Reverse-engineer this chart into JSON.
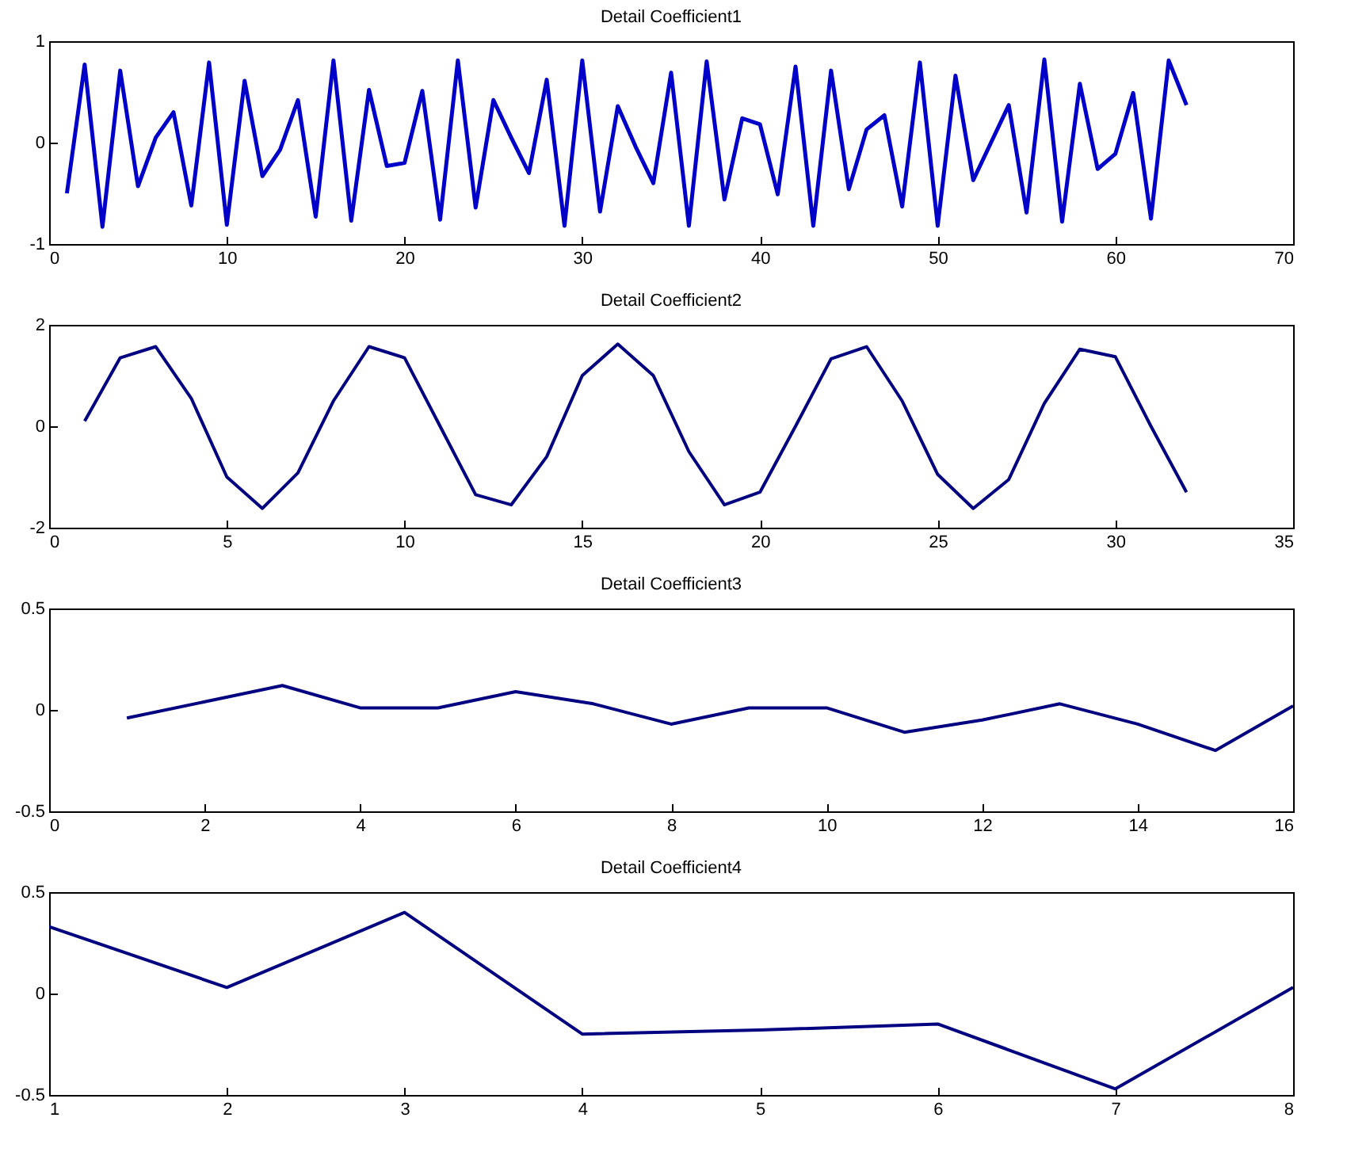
{
  "chart_data": [
    {
      "type": "line",
      "title": "Detail Coefficient1",
      "x": [
        1,
        2,
        3,
        4,
        5,
        6,
        7,
        8,
        9,
        10,
        11,
        12,
        13,
        14,
        15,
        16,
        17,
        18,
        19,
        20,
        21,
        22,
        23,
        24,
        25,
        26,
        27,
        28,
        29,
        30,
        31,
        32,
        33,
        34,
        35,
        36,
        37,
        38,
        39,
        40,
        41,
        42,
        43,
        44,
        45,
        46,
        47,
        48,
        49,
        50,
        51,
        52,
        53,
        54,
        55,
        56,
        57,
        58,
        59,
        60,
        61,
        62,
        63,
        64
      ],
      "series": [
        {
          "color": "#0000c8",
          "values": [
            -0.5,
            0.77,
            -0.83,
            0.71,
            -0.43,
            0.05,
            0.3,
            -0.62,
            0.79,
            -0.81,
            0.61,
            -0.33,
            -0.07,
            0.42,
            -0.73,
            0.81,
            -0.77,
            0.52,
            -0.23,
            -0.2,
            0.51,
            -0.76,
            0.81,
            -0.64,
            0.42,
            0.05,
            -0.3,
            0.62,
            -0.82,
            0.81,
            -0.68,
            0.36,
            -0.04,
            -0.4,
            0.69,
            -0.82,
            0.8,
            -0.56,
            0.24,
            0.18,
            -0.51,
            0.75,
            -0.82,
            0.71,
            -0.46,
            0.13,
            0.27,
            -0.63,
            0.79,
            -0.82,
            0.66,
            -0.37,
            0,
            0.37,
            -0.69,
            0.82,
            -0.78,
            0.58,
            -0.26,
            -0.11,
            0.49,
            -0.75,
            0.81,
            0.37
          ]
        }
      ],
      "xlim": [
        0,
        70
      ],
      "xticks": [
        0,
        10,
        20,
        30,
        40,
        50,
        60,
        70
      ],
      "ylim": [
        -1,
        1
      ],
      "yticks": [
        -1,
        0,
        1
      ]
    },
    {
      "type": "line",
      "title": "Detail Coefficient2",
      "x": [
        1,
        2,
        3,
        4,
        5,
        6,
        7,
        8,
        9,
        10,
        11,
        12,
        13,
        14,
        15,
        16,
        17,
        18,
        19,
        20,
        21,
        22,
        23,
        24,
        25,
        26,
        27,
        28,
        29,
        30,
        31,
        32
      ],
      "series": [
        {
          "color": "#000080",
          "values": [
            0.1,
            1.35,
            1.57,
            0.55,
            -1.0,
            -1.62,
            -0.92,
            0.5,
            1.57,
            1.35,
            0,
            -1.35,
            -1.55,
            -0.6,
            1.0,
            1.62,
            1.0,
            -0.5,
            -1.55,
            -1.3,
            0,
            1.33,
            1.57,
            0.5,
            -0.95,
            -1.62,
            -1.05,
            0.45,
            1.52,
            1.37,
            0,
            -1.3
          ]
        }
      ],
      "xlim": [
        0,
        35
      ],
      "xticks": [
        0,
        5,
        10,
        15,
        20,
        25,
        30,
        35
      ],
      "ylim": [
        -2,
        2
      ],
      "yticks": [
        -2,
        0,
        2
      ]
    },
    {
      "type": "line",
      "title": "Detail Coefficient3",
      "x": [
        1,
        2,
        3,
        4,
        5,
        6,
        7,
        8,
        9,
        10,
        11,
        12,
        13,
        14,
        15,
        16
      ],
      "series": [
        {
          "color": "#000080",
          "values": [
            -0.04,
            0.04,
            0.12,
            0.01,
            0.01,
            0.09,
            0.03,
            -0.07,
            0.01,
            0.01,
            -0.11,
            -0.05,
            0.03,
            -0.07,
            -0.2,
            0.02
          ]
        }
      ],
      "xlim": [
        0,
        16
      ],
      "xticks": [
        0,
        2,
        4,
        6,
        8,
        10,
        12,
        14,
        16
      ],
      "ylim": [
        -0.5,
        0.5
      ],
      "yticks": [
        -0.5,
        0,
        0.5
      ]
    },
    {
      "type": "line",
      "title": "Detail Coefficient4",
      "x": [
        1,
        2,
        3,
        4,
        5,
        6,
        7,
        8
      ],
      "series": [
        {
          "color": "#000080",
          "values": [
            0.33,
            0.03,
            0.4,
            -0.2,
            -0.18,
            -0.15,
            -0.47,
            0.03
          ]
        }
      ],
      "xlim": [
        1,
        8
      ],
      "xticks": [
        1,
        2,
        3,
        4,
        5,
        6,
        7,
        8
      ],
      "ylim": [
        -0.5,
        0.5
      ],
      "yticks": [
        -0.5,
        0,
        0.5
      ]
    }
  ]
}
